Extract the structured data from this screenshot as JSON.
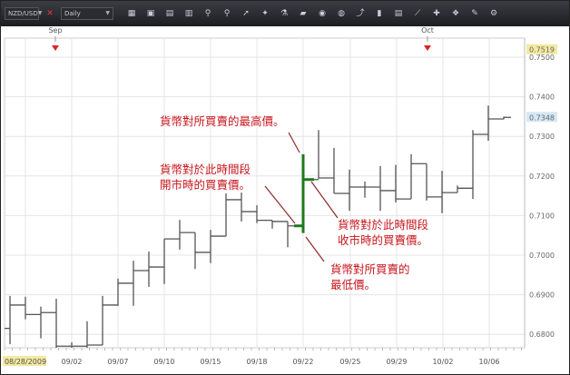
{
  "toolbar": {
    "symbol": "NZD/USD",
    "timeframe": "Daily",
    "icons": [
      "bar-chart-icon",
      "candlestick-toggle-icon",
      "layout-icon",
      "window-icon",
      "zoom-in-icon",
      "zoom-out-icon",
      "pointer-icon",
      "crosshair-icon",
      "indicator-icon",
      "note-icon",
      "eye-icon",
      "globe-icon",
      "line-chart-icon",
      "column-icon",
      "grid-icon",
      "draw-line-icon",
      "trend-icon",
      "network-icon",
      "eraser-icon",
      "settings-icon"
    ]
  },
  "chart_data": {
    "type": "ohlc",
    "top_axis_labels": [
      "Sep",
      "Oct"
    ],
    "x_tick_labels": [
      "08/28/2009",
      "09/02",
      "09/07",
      "09/10",
      "09/15",
      "09/18",
      "09/22",
      "09/25",
      "09/29",
      "10/02",
      "10/06"
    ],
    "y_tick_labels": [
      "0.7500",
      "0.7400",
      "0.7300",
      "0.7200",
      "0.7100",
      "0.7000",
      "0.6900",
      "0.6800"
    ],
    "ylim": [
      0.6766,
      0.7545
    ],
    "current_high_label": "0.7519",
    "last_price_label": "0.7348",
    "grid": true,
    "highlight_bar_index": 19,
    "colors": {
      "bar": "#555555",
      "highlight": "#1e7a1e",
      "annotation": "#c8161d",
      "high_label_bg": "#f3e9a0",
      "last_label_bg": "#d6e8f5"
    },
    "bars": [
      {
        "o": 0.6815,
        "h": 0.6897,
        "l": 0.6775,
        "c": 0.6874
      },
      {
        "o": 0.6874,
        "h": 0.6895,
        "l": 0.6838,
        "c": 0.685
      },
      {
        "o": 0.685,
        "h": 0.687,
        "l": 0.679,
        "c": 0.6855
      },
      {
        "o": 0.6855,
        "h": 0.689,
        "l": 0.6766,
        "c": 0.677
      },
      {
        "o": 0.677,
        "h": 0.678,
        "l": 0.6766,
        "c": 0.677
      },
      {
        "o": 0.677,
        "h": 0.6833,
        "l": 0.6766,
        "c": 0.6773
      },
      {
        "o": 0.6773,
        "h": 0.6897,
        "l": 0.6773,
        "c": 0.6874
      },
      {
        "o": 0.6874,
        "h": 0.6941,
        "l": 0.6872,
        "c": 0.6929
      },
      {
        "o": 0.6929,
        "h": 0.6986,
        "l": 0.6872,
        "c": 0.6961
      },
      {
        "o": 0.6961,
        "h": 0.7009,
        "l": 0.692,
        "c": 0.697
      },
      {
        "o": 0.697,
        "h": 0.7041,
        "l": 0.6927,
        "c": 0.7041
      },
      {
        "o": 0.7041,
        "h": 0.7089,
        "l": 0.7014,
        "c": 0.7057
      },
      {
        "o": 0.7057,
        "h": 0.7057,
        "l": 0.6965,
        "c": 0.7007
      },
      {
        "o": 0.7007,
        "h": 0.7064,
        "l": 0.698,
        "c": 0.7048
      },
      {
        "o": 0.7048,
        "h": 0.7156,
        "l": 0.7048,
        "c": 0.714
      },
      {
        "o": 0.714,
        "h": 0.7158,
        "l": 0.7085,
        "c": 0.711
      },
      {
        "o": 0.711,
        "h": 0.7126,
        "l": 0.7081,
        "c": 0.7088
      },
      {
        "o": 0.7088,
        "h": 0.7088,
        "l": 0.7067,
        "c": 0.7085
      },
      {
        "o": 0.7085,
        "h": 0.7085,
        "l": 0.702,
        "c": 0.7074
      },
      {
        "o": 0.7074,
        "h": 0.7255,
        "l": 0.7056,
        "c": 0.7191
      },
      {
        "o": 0.7191,
        "h": 0.7316,
        "l": 0.7193,
        "c": 0.7195
      },
      {
        "o": 0.7195,
        "h": 0.7271,
        "l": 0.7156,
        "c": 0.7156
      },
      {
        "o": 0.7156,
        "h": 0.7216,
        "l": 0.7112,
        "c": 0.7172
      },
      {
        "o": 0.7172,
        "h": 0.7186,
        "l": 0.7145,
        "c": 0.7172
      },
      {
        "o": 0.7172,
        "h": 0.7225,
        "l": 0.7112,
        "c": 0.7163
      },
      {
        "o": 0.7163,
        "h": 0.7228,
        "l": 0.7133,
        "c": 0.7142
      },
      {
        "o": 0.7142,
        "h": 0.7255,
        "l": 0.7142,
        "c": 0.7231
      },
      {
        "o": 0.7231,
        "h": 0.7231,
        "l": 0.7138,
        "c": 0.7147
      },
      {
        "o": 0.7147,
        "h": 0.7213,
        "l": 0.7106,
        "c": 0.7158
      },
      {
        "o": 0.7158,
        "h": 0.7176,
        "l": 0.7158,
        "c": 0.7169
      },
      {
        "o": 0.7169,
        "h": 0.7316,
        "l": 0.7142,
        "c": 0.7305
      },
      {
        "o": 0.7305,
        "h": 0.7378,
        "l": 0.7289,
        "c": 0.7344
      },
      {
        "o": 0.7344,
        "h": 0.735,
        "l": 0.7343,
        "c": 0.7348
      }
    ]
  },
  "annotations": {
    "high": "貨幣對所買賣的最高價。",
    "open": [
      "貨幣對於此時間段",
      "開市時的買賣價。"
    ],
    "close": [
      "貨幣對於此時間段",
      "收市時的買賣價。"
    ],
    "low": [
      "貨幣對所買賣的",
      "最低價。"
    ]
  }
}
